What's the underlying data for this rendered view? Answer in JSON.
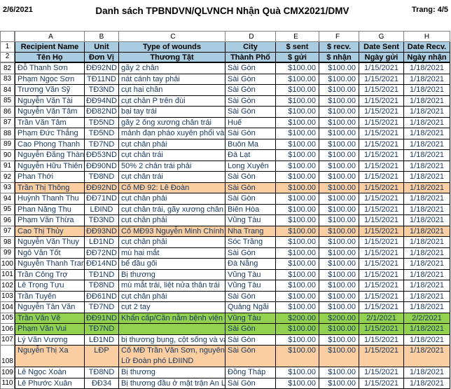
{
  "page_header": {
    "date": "2/6/2021",
    "title": "Danh sách TPBNDVN/QLVNCH Nhận Quà CMX2021/DMV",
    "page": "Trang: 4/5"
  },
  "colors": {
    "header_bg": "#A9CCE0",
    "orange": "#FBCEA2",
    "green": "#92D050",
    "text": "#17375E"
  },
  "sheet": {
    "column_letters": [
      "A",
      "B",
      "C",
      "D",
      "E",
      "F",
      "G",
      "H"
    ],
    "header_row_numbers": {
      "row1": "1",
      "row2": "2"
    },
    "header_en": {
      "name": "Recipient Name",
      "unit": "Unit",
      "wounds": "Type of wounds",
      "city": "City",
      "sent": "$ sent",
      "recv": "$ recv.",
      "date_sent": "Date Sent",
      "date_recv": "Date Recv."
    },
    "header_vn": {
      "name": "Tên Họ",
      "unit": "Đơn Vị",
      "wounds": "Thương Tật",
      "city": "Thành Phố",
      "sent": "$ gửi",
      "recv": "$ nhận",
      "date_sent": "Ngày gửi",
      "date_recv": "Ngày nhận"
    },
    "rows": [
      {
        "n": "82",
        "name": "Đỗ Thanh Sơn",
        "unit": "ĐĐ92ND",
        "wounds": "gãy 2 chân",
        "city": "Sài Gòn",
        "sent": "$100.00",
        "recv": "$100.00",
        "date_sent": "1/15/2021",
        "date_recv": "1/18/2021",
        "hl": null,
        "tall": false
      },
      {
        "n": "83",
        "name": "Phạm Ngọc Sơn",
        "unit": "TĐ11ND",
        "wounds": "nát cánh tay phải",
        "city": "Sài Gòn",
        "sent": "$100.00",
        "recv": "$100.00",
        "date_sent": "1/15/2021",
        "date_recv": "1/18/2021",
        "hl": null,
        "tall": false
      },
      {
        "n": "84",
        "name": "Trương Văn Sỹ",
        "unit": "TĐ3ND",
        "wounds": "cụt hai chân",
        "city": "Sài Gòn",
        "sent": "$100.00",
        "recv": "$100.00",
        "date_sent": "1/15/2021",
        "date_recv": "1/18/2021",
        "hl": null,
        "tall": false
      },
      {
        "n": "85",
        "name": "Nguyễn Văn Tài",
        "unit": "ĐĐ94ND",
        "wounds": "cụt chân P trên đùi",
        "city": "Sài Gòn",
        "sent": "$100.00",
        "recv": "$100.00",
        "date_sent": "1/15/2021",
        "date_recv": "1/18/2021",
        "hl": null,
        "tall": false
      },
      {
        "n": "86",
        "name": "Nguyễn Văn Tâm",
        "unit": "ĐĐ82ND",
        "wounds": "bại tay trái",
        "city": "Sài Gòn",
        "sent": "$100.00",
        "recv": "$100.00",
        "date_sent": "1/15/2021",
        "date_recv": "1/18/2021",
        "hl": null,
        "tall": false
      },
      {
        "n": "87",
        "name": "Trần Văn Tâm",
        "unit": "TĐ5ND",
        "wounds": "gãy 2 ống xương chân trái",
        "city": "Huế",
        "sent": "$100.00",
        "recv": "$100.00",
        "date_sent": "1/15/2021",
        "date_recv": "1/18/2021",
        "hl": null,
        "tall": false
      },
      {
        "n": "88",
        "name": "Phạm Đức Thắng",
        "unit": "TĐ5ND",
        "wounds": "mảnh đạn pháo xuyên phổi và",
        "city": "Sài Gòn",
        "sent": "$100.00",
        "recv": "$100.00",
        "date_sent": "1/15/2021",
        "date_recv": "1/18/2021",
        "hl": null,
        "tall": false
      },
      {
        "n": "89",
        "name": "Cao Phong Thanh",
        "unit": "TĐ7ND",
        "wounds": "cụt chân phải",
        "city": "Buôn Ma",
        "sent": "$100.00",
        "recv": "$100.00",
        "date_sent": "1/15/2021",
        "date_recv": "1/18/2021",
        "hl": null,
        "tall": false
      },
      {
        "n": "90",
        "name": "Nguyễn Đăng Thành",
        "unit": "ĐĐ53ND",
        "wounds": "cụt chân trái",
        "city": "Đà Lạt",
        "sent": "$100.00",
        "recv": "$100.00",
        "date_sent": "1/15/2021",
        "date_recv": "1/18/2021",
        "hl": null,
        "tall": false
      },
      {
        "n": "91",
        "name": "Nguyễn Hữu Thiên",
        "unit": "ĐĐ90ND",
        "wounds": "50% 2 chân trái phải",
        "city": "Long Xuyên",
        "sent": "$100.00",
        "recv": "$100.00",
        "date_sent": "1/15/2021",
        "date_recv": "1/18/2021",
        "hl": null,
        "tall": false
      },
      {
        "n": "92",
        "name": "Phan Thới",
        "unit": "TĐ8ND",
        "wounds": "cụt chân trái",
        "city": "Sài Gòn",
        "sent": "$100.00",
        "recv": "$100.00",
        "date_sent": "1/15/2021",
        "date_recv": "1/18/2021",
        "hl": null,
        "tall": false
      },
      {
        "n": "93",
        "name": "Trần Thị Thông",
        "unit": "ĐĐ92ND",
        "wounds": "Cố MĐ 92: Lê Đoàn",
        "city": "Sài Gòn",
        "sent": "$100.00",
        "recv": "$100.00",
        "date_sent": "1/15/2021",
        "date_recv": "1/18/2021",
        "hl": "orange",
        "tall": false
      },
      {
        "n": "94",
        "name": "Huỳnh Thanh Thu",
        "unit": "ĐĐ71ND",
        "wounds": "cụt chân phải",
        "city": "Sài Gòn",
        "sent": "$100.00",
        "recv": "$100.00",
        "date_sent": "1/15/2021",
        "date_recv": "1/18/2021",
        "hl": null,
        "tall": false
      },
      {
        "n": "95",
        "name": "Phan Năng Thu",
        "unit": "LĐIND",
        "wounds": "cụt chân trái, gãy xương chân",
        "city": "Biên Hòa",
        "sent": "$100.00",
        "recv": "$100.00",
        "date_sent": "1/15/2021",
        "date_recv": "1/18/2021",
        "hl": null,
        "tall": false
      },
      {
        "n": "96",
        "name": "Phạm Văn Thừa",
        "unit": "TĐ3ND",
        "wounds": "cụt chân phải",
        "city": "Vũng Tàu",
        "sent": "$100.00",
        "recv": "$100.00",
        "date_sent": "1/15/2021",
        "date_recv": "1/18/2021",
        "hl": null,
        "tall": false
      },
      {
        "n": "97",
        "name": "Cao Thị Thủy",
        "unit": "ĐĐ93ND",
        "wounds": "Cố MĐ93 Nguyễn Minh Chính",
        "city": "Nha Trang",
        "sent": "$100.00",
        "recv": "$100.00",
        "date_sent": "1/15/2021",
        "date_recv": "1/18/2021",
        "hl": "orange",
        "tall": false
      },
      {
        "n": "98",
        "name": "Nguyễn Văn Thụy",
        "unit": "LĐ1ND",
        "wounds": "cụt chân phải",
        "city": "Sóc Trăng",
        "sent": "$100.00",
        "recv": "$100.00",
        "date_sent": "1/15/2021",
        "date_recv": "1/18/2021",
        "hl": null,
        "tall": false
      },
      {
        "n": "99",
        "name": "Ngô Văn Tốt",
        "unit": "ĐĐ72ND",
        "wounds": "mù hai mắt",
        "city": "Sài Gòn",
        "sent": "$100.00",
        "recv": "$100.00",
        "date_sent": "1/15/2021",
        "date_recv": "1/18/2021",
        "hl": null,
        "tall": false
      },
      {
        "n": "100",
        "name": "Nguyễn Thanh Trang",
        "unit": "ĐĐ14ND",
        "wounds": "bể đầu gối",
        "city": "Đà Nẵng",
        "sent": "$100.00",
        "recv": "$100.00",
        "date_sent": "1/15/2021",
        "date_recv": "1/18/2021",
        "hl": null,
        "tall": false
      },
      {
        "n": "101",
        "name": "Trần Công Trợ",
        "unit": "TĐ1ND",
        "wounds": "Bị thương",
        "city": "Vũng Tàu",
        "sent": "$100.00",
        "recv": "$100.00",
        "date_sent": "1/15/2021",
        "date_recv": "1/18/2021",
        "hl": null,
        "tall": false
      },
      {
        "n": "102",
        "name": "Lê Trọng Tựu",
        "unit": "TĐ8ND",
        "wounds": "mù mắt trái, liệt nửa thân trái",
        "city": "Vũng Tàu",
        "sent": "$100.00",
        "recv": "$100.00",
        "date_sent": "1/15/2021",
        "date_recv": "1/18/2021",
        "hl": null,
        "tall": false
      },
      {
        "n": "103",
        "name": "Trần Tuyến",
        "unit": "ĐĐ61ND",
        "wounds": "cụt chân phải",
        "city": "Sài Gòn",
        "sent": "$100.00",
        "recv": "$100.00",
        "date_sent": "1/15/2021",
        "date_recv": "1/18/2021",
        "hl": null,
        "tall": false
      },
      {
        "n": "104",
        "name": "Nguyễn Tân Văn",
        "unit": "TĐ7ND",
        "wounds": "cụt 2 tay",
        "city": "Quảng Ngãi",
        "sent": "$100.00",
        "recv": "$100.00",
        "date_sent": "1/15/2021",
        "date_recv": "1/18/2021",
        "hl": null,
        "tall": false
      },
      {
        "n": "105",
        "name": "Trần Văn Vẽ",
        "unit": "ĐĐ91ND",
        "wounds": "Khẩn cấp/Cần nằm  bệnh viện",
        "city": "Vũng Tàu",
        "sent": "$200.00",
        "recv": "$200.00",
        "date_sent": "2/1/2021",
        "date_recv": "2/2/2021",
        "hl": "green",
        "tall": false
      },
      {
        "n": "106",
        "name": "Phạm Văn Vui",
        "unit": "TĐ7ND",
        "wounds": "",
        "city": "Sài Gòn",
        "sent": "$100.00",
        "recv": "$100.00",
        "date_sent": "1/15/2021",
        "date_recv": "1/18/2021",
        "hl": "green",
        "tall": false
      },
      {
        "n": "107",
        "name": "Lý Văn Vượng",
        "unit": "LĐ1ND",
        "wounds": "bị thương bụng, cột sống và vai",
        "city": "Sài Gòn",
        "sent": "$100.00",
        "recv": "$100.00",
        "date_sent": "1/15/2021",
        "date_recv": "1/18/2021",
        "hl": null,
        "tall": false
      },
      {
        "n": "108",
        "name": "Nguyễn Thị Xa",
        "unit": "LĐP",
        "wounds": "Cố MĐ Trần Văn Sơn, nguyên Lữ Đoàn phó LĐIIND",
        "city": "Sài Gòn",
        "sent": "$100.00",
        "recv": "$100.00",
        "date_sent": "1/15/2021",
        "date_recv": "1/18/2021",
        "hl": "orange",
        "tall": true
      },
      {
        "n": "109",
        "name": "Lê Ngọc Xoàn",
        "unit": "TĐ8ND",
        "wounds": "Bị thương",
        "city": "Đồng Tháp",
        "sent": "$100.00",
        "recv": "$100.00",
        "date_sent": "1/15/2021",
        "date_recv": "1/18/2021",
        "hl": null,
        "tall": false
      },
      {
        "n": "110",
        "name": "Lê Phước Xuân",
        "unit": "ĐĐ34",
        "wounds": "Bị thương đầu ở mặt trận An Lộc",
        "city": "Sài Gòn",
        "sent": "$100.00",
        "recv": "$100.00",
        "date_sent": "1/15/2021",
        "date_recv": "1/18/2021",
        "hl": null,
        "tall": false
      }
    ]
  }
}
